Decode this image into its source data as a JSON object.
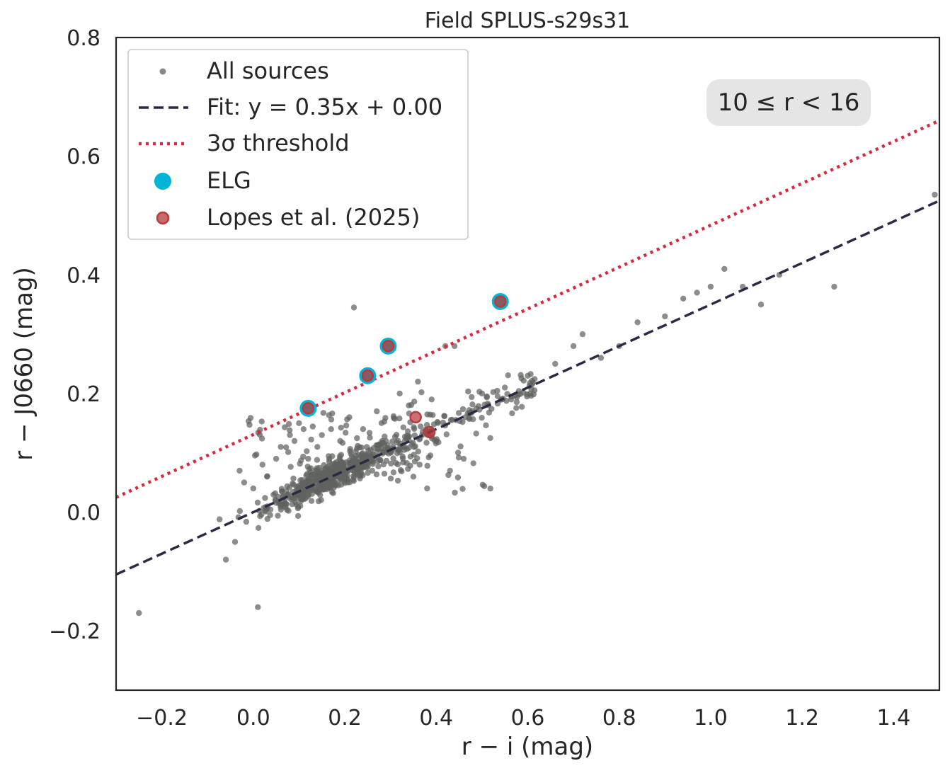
{
  "chart_data": {
    "type": "scatter",
    "title": "Field SPLUS-s29s31",
    "xlabel": "r − i (mag)",
    "ylabel": "r − J0660 (mag)",
    "xlim": [
      -0.3,
      1.5
    ],
    "ylim": [
      -0.3,
      0.8
    ],
    "xticks": [
      -0.2,
      0.0,
      0.2,
      0.4,
      0.6,
      0.8,
      1.0,
      1.2,
      1.4
    ],
    "xtick_labels": [
      "−0.2",
      "0.0",
      "0.2",
      "0.4",
      "0.6",
      "0.8",
      "1.0",
      "1.2",
      "1.4"
    ],
    "yticks": [
      -0.2,
      0.0,
      0.2,
      0.4,
      0.6,
      0.8
    ],
    "ytick_labels": [
      "−0.2",
      "0.0",
      "0.2",
      "0.4",
      "0.6",
      "0.8"
    ],
    "grid": false,
    "legend_position": "top-left",
    "annotation": "10 ≤ r < 16",
    "colors": {
      "all_sources": "#5f625f",
      "fit": "#2b2a44",
      "threshold": "#d62a3e",
      "elg": "#00b4d8",
      "lopes": "#b83a3a"
    },
    "series": [
      {
        "name": "All sources",
        "kind": "points",
        "sample": [
          [
            -0.25,
            -0.17
          ],
          [
            -0.06,
            -0.08
          ],
          [
            0.01,
            -0.16
          ],
          [
            -0.04,
            -0.05
          ],
          [
            -0.03,
            0.07
          ],
          [
            -0.02,
            0.05
          ],
          [
            0.0,
            0.04
          ],
          [
            0.02,
            0.08
          ],
          [
            0.03,
            0.06
          ],
          [
            0.05,
            0.09
          ],
          [
            0.06,
            0.11
          ],
          [
            0.08,
            0.13
          ],
          [
            0.09,
            0.12
          ],
          [
            0.1,
            0.15
          ],
          [
            0.11,
            0.14
          ],
          [
            0.12,
            0.09
          ],
          [
            0.14,
            0.11
          ],
          [
            0.15,
            0.13
          ],
          [
            0.17,
            0.14
          ],
          [
            0.19,
            0.12
          ],
          [
            0.21,
            0.16
          ],
          [
            0.22,
            0.345
          ],
          [
            0.24,
            0.14
          ],
          [
            0.27,
            0.17
          ],
          [
            0.32,
            0.2
          ],
          [
            0.34,
            0.18
          ],
          [
            0.36,
            0.22
          ],
          [
            0.39,
            0.19
          ],
          [
            0.42,
            0.28
          ],
          [
            0.44,
            0.28
          ],
          [
            0.46,
            0.09
          ],
          [
            0.5,
            0.2
          ],
          [
            0.55,
            0.21
          ],
          [
            0.6,
            0.23
          ],
          [
            0.66,
            0.25
          ],
          [
            0.7,
            0.28
          ],
          [
            0.72,
            0.3
          ],
          [
            0.76,
            0.26
          ],
          [
            0.8,
            0.28
          ],
          [
            0.84,
            0.32
          ],
          [
            0.9,
            0.33
          ],
          [
            0.94,
            0.36
          ],
          [
            0.97,
            0.37
          ],
          [
            1.0,
            0.38
          ],
          [
            1.03,
            0.41
          ],
          [
            1.07,
            0.38
          ],
          [
            1.11,
            0.35
          ],
          [
            1.15,
            0.4
          ],
          [
            1.27,
            0.38
          ],
          [
            1.49,
            0.535
          ],
          [
            0.35,
            0.06
          ],
          [
            0.38,
            0.04
          ],
          [
            0.43,
            0.07
          ],
          [
            0.4,
            0.12
          ],
          [
            0.29,
            0.12
          ],
          [
            0.26,
            0.07
          ]
        ]
      },
      {
        "name": "Fit: y = 0.35x + 0.00",
        "kind": "line",
        "style": "dashed",
        "slope": 0.35,
        "intercept": 0.0
      },
      {
        "name": "3σ threshold",
        "kind": "line",
        "style": "dotted",
        "x": [
          -0.3,
          1.5
        ],
        "y": [
          0.025,
          0.66
        ]
      },
      {
        "name": "ELG",
        "kind": "points",
        "x": [
          0.12,
          0.25,
          0.295,
          0.54
        ],
        "y": [
          0.175,
          0.23,
          0.28,
          0.355
        ]
      },
      {
        "name": "Lopes et al. (2025)",
        "kind": "points",
        "x": [
          0.12,
          0.25,
          0.295,
          0.54,
          0.355,
          0.385
        ],
        "y": [
          0.175,
          0.23,
          0.28,
          0.355,
          0.16,
          0.135
        ]
      }
    ]
  }
}
